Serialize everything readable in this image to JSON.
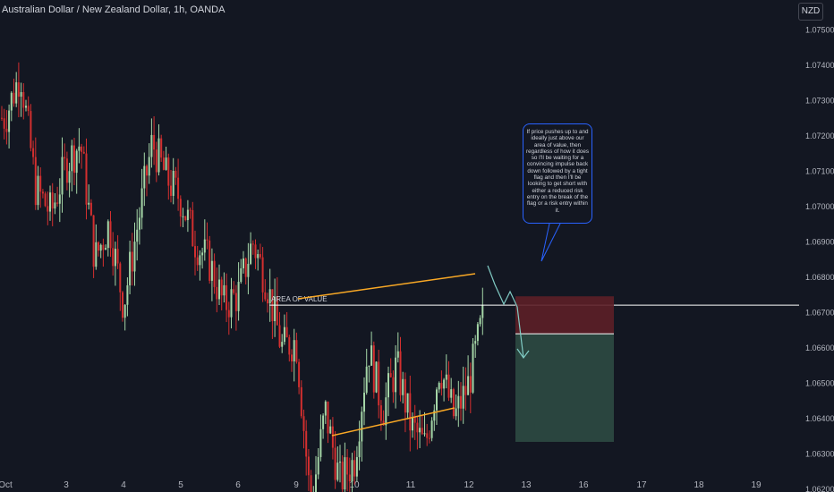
{
  "header": {
    "title": "Australian Dollar / New Zealand Dollar, 1h, OANDA"
  },
  "currency_button": "NZD",
  "annotation": {
    "area_label": "AREA OF VALUE",
    "note": "If price pushes up to and ideally just above our area of value, then regardless of how it does so I'll be waiting for a convincing impulse back down followed by a tight flag and then I'll be looking to get short with either a reduced risk entry on the break of the flag or a risk entry within it."
  },
  "colors": {
    "background": "#131722",
    "up_candle": "#a5d6a7",
    "down_candle": "#d32f2f",
    "wedge_line": "#f9a825",
    "area_line": "#ffffff",
    "stop_zone": "#5d1f27",
    "target_zone": "#2d4a43",
    "projection": "#80cbc4",
    "note_border": "#2962ff"
  },
  "chart_data": {
    "type": "candlestick",
    "title": "Australian Dollar / New Zealand Dollar, 1h, OANDA",
    "ylim": [
      1.0615,
      1.0755
    ],
    "y_ticks": [
      "1.07500",
      "1.07400",
      "1.07300",
      "1.07200",
      "1.07100",
      "1.07000",
      "1.06900",
      "1.06800",
      "1.06700",
      "1.06600",
      "1.06500",
      "1.06400",
      "1.06300",
      "1.06200"
    ],
    "x_ticks": [
      "Oct",
      "3",
      "4",
      "5",
      "6",
      "9",
      "10",
      "11",
      "12",
      "13",
      "16",
      "17",
      "18",
      "19"
    ],
    "price_path": [
      [
        "Oct",
        1.0725
      ],
      [
        "Oct",
        1.0738
      ],
      [
        "Oct",
        1.0705
      ],
      [
        "Oct",
        1.0698
      ],
      [
        "3",
        1.0712
      ],
      [
        "3",
        1.0718
      ],
      [
        "3",
        1.0685
      ],
      [
        "3",
        1.0695
      ],
      [
        "4",
        1.0672
      ],
      [
        "4",
        1.0695
      ],
      [
        "4",
        1.0718
      ],
      [
        "4",
        1.0708
      ],
      [
        "5",
        1.0702
      ],
      [
        "5",
        1.069
      ],
      [
        "5",
        1.0684
      ],
      [
        "5",
        1.0672
      ],
      [
        "6",
        1.0675
      ],
      [
        "6",
        1.069
      ],
      [
        "6",
        1.0678
      ],
      [
        "6",
        1.066
      ],
      [
        "9",
        1.0662
      ],
      [
        "9",
        1.0615
      ],
      [
        "9",
        1.0642
      ],
      [
        "9",
        1.0622
      ],
      [
        "10",
        1.0628
      ],
      [
        "10",
        1.066
      ],
      [
        "10",
        1.0642
      ],
      [
        "10",
        1.0655
      ],
      [
        "11",
        1.0638
      ],
      [
        "11",
        1.0632
      ],
      [
        "11",
        1.0655
      ],
      [
        "11",
        1.064
      ],
      [
        "12",
        1.065
      ],
      [
        "12",
        1.0675
      ],
      [
        "12",
        1.0678
      ]
    ],
    "area_of_value": 1.0672,
    "short_setup": {
      "stop_top": 1.06745,
      "entry": 1.06639,
      "target": 1.06333
    }
  }
}
